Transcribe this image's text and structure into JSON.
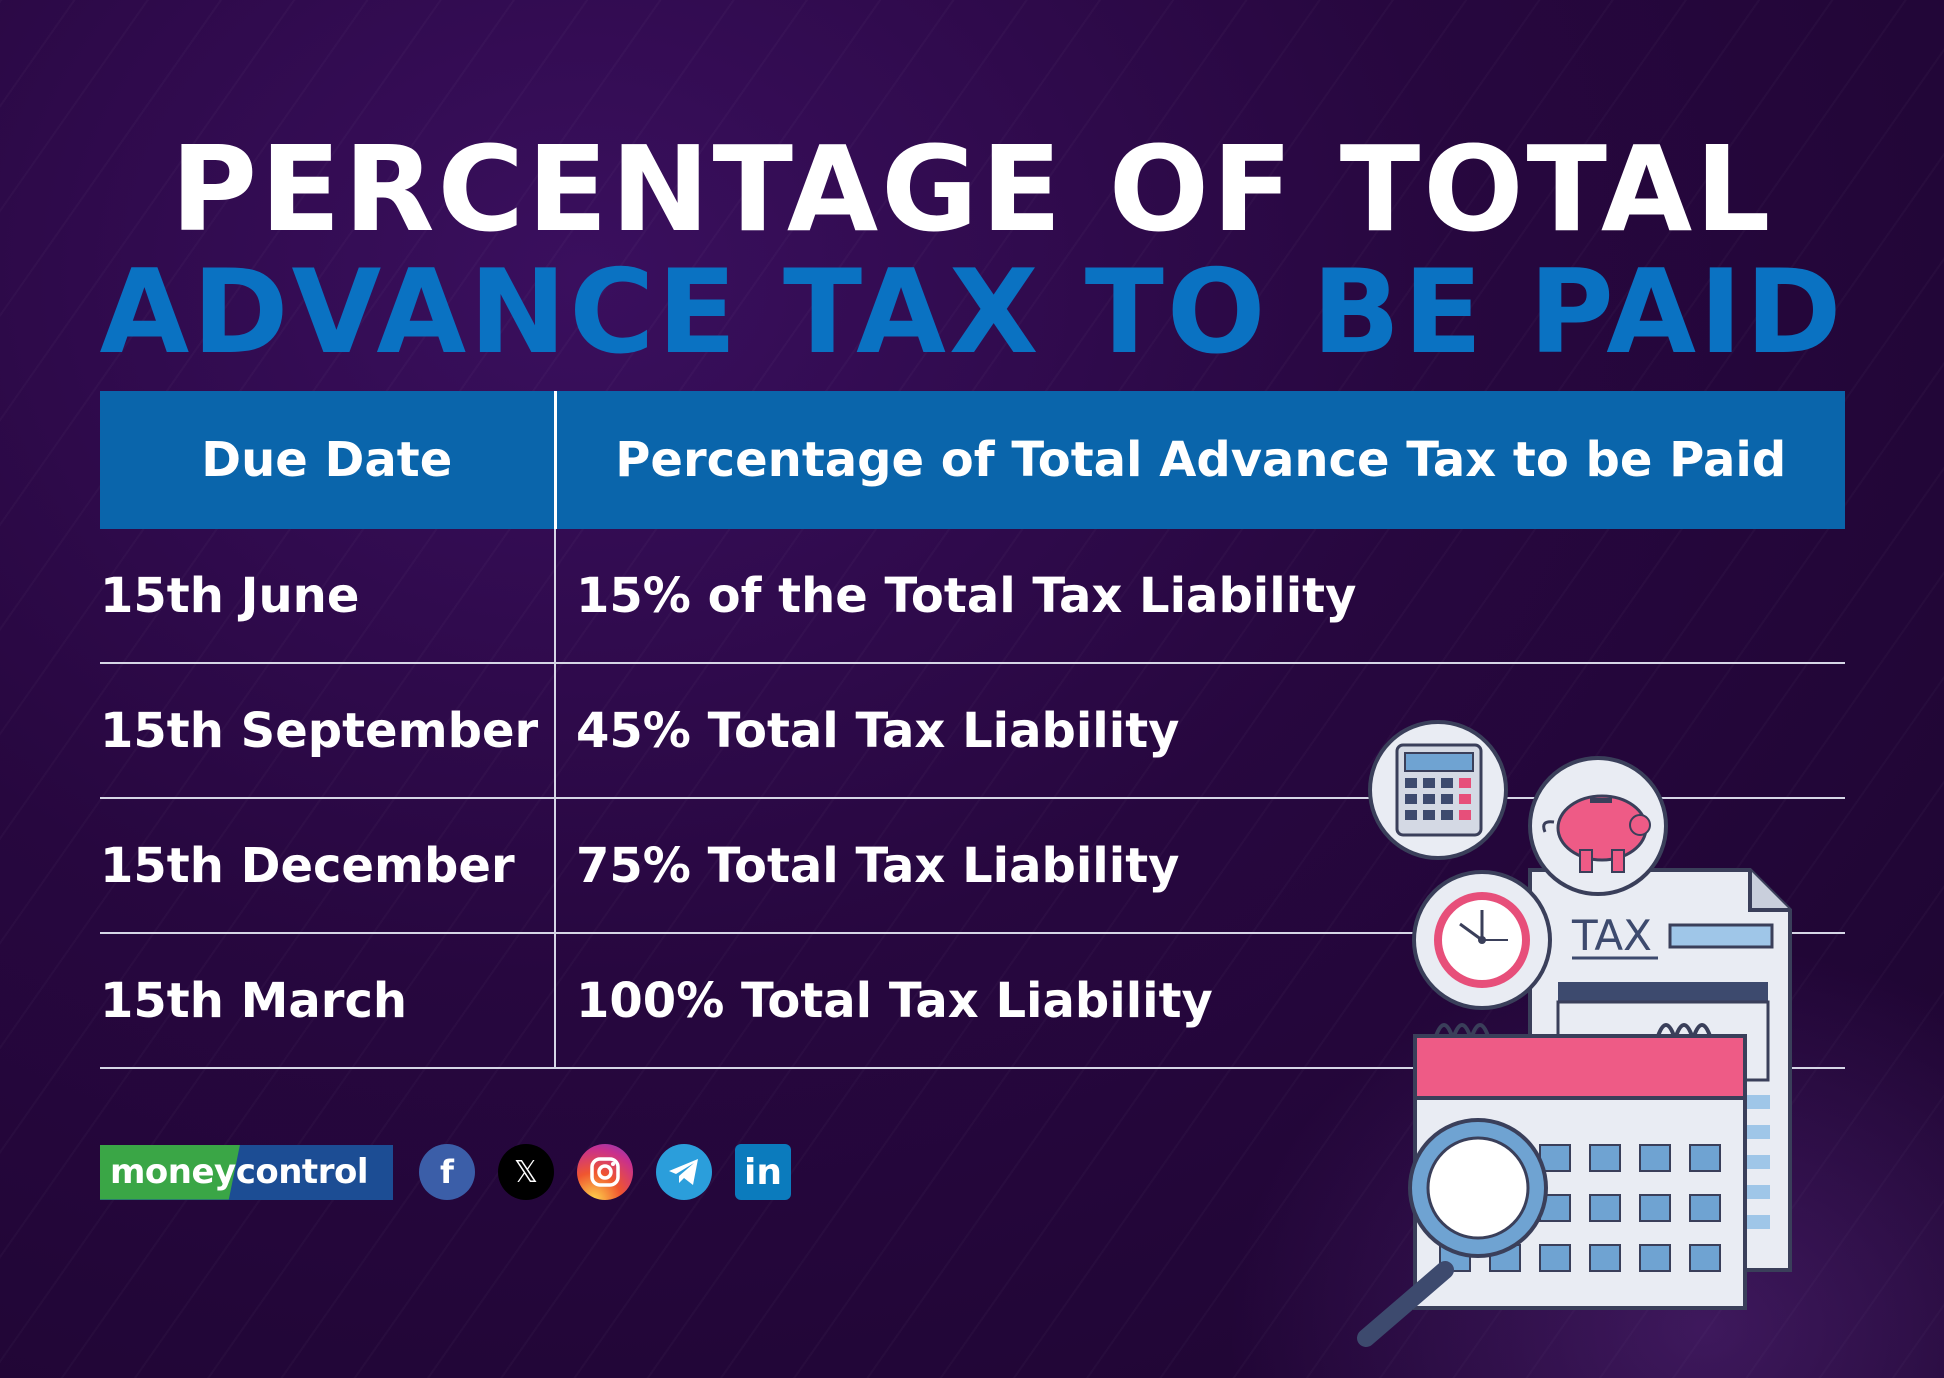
{
  "title": {
    "line1": "PERCENTAGE OF TOTAL",
    "line2": "ADVANCE TAX TO BE PAID"
  },
  "table": {
    "headers": [
      "Due Date",
      "Percentage of Total Advance Tax to be Paid"
    ],
    "rows": [
      {
        "date": "15th June",
        "percentage": "15% of the Total Tax Liability"
      },
      {
        "date": "15th September",
        "percentage": "45% Total Tax Liability"
      },
      {
        "date": "15th December",
        "percentage": "75% Total Tax Liability"
      },
      {
        "date": "15th March",
        "percentage": "100% Total Tax Liability"
      }
    ]
  },
  "brand": {
    "logo_text_part1": "money",
    "logo_text_part2": "control",
    "social_icons": [
      "facebook-icon",
      "x-icon",
      "instagram-icon",
      "telegram-icon",
      "linkedin-icon"
    ]
  },
  "illustration": {
    "document_label": "TAX"
  },
  "colors": {
    "background": "#27073f",
    "title_primary": "#ffffff",
    "title_accent": "#0a72c2",
    "table_header": "#0a65ab",
    "brand_green": "#3aa646",
    "brand_blue": "#1c4d94"
  }
}
